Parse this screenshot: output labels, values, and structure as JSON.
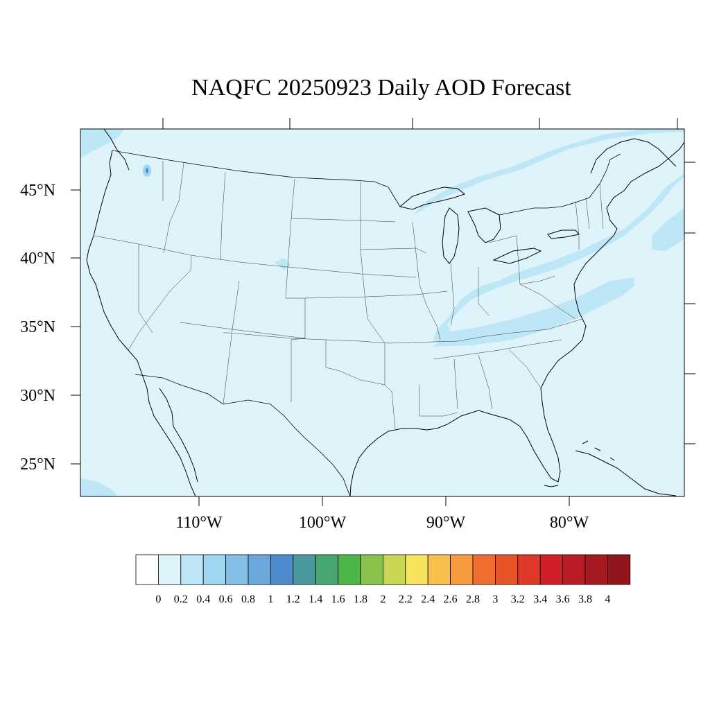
{
  "title": "NAQFC 20250923 Daily AOD Forecast",
  "map": {
    "background_color": "#dff3fb",
    "lat_labels": [
      "45°N",
      "40°N",
      "35°N",
      "30°N",
      "25°N"
    ],
    "lon_labels": [
      "110°W",
      "100°W",
      "90°W",
      "80°W"
    ]
  },
  "colorbar": {
    "levels": [
      "0",
      "0.2",
      "0.4",
      "0.6",
      "0.8",
      "1",
      "1.2",
      "1.4",
      "1.6",
      "1.8",
      "2",
      "2.2",
      "2.4",
      "2.6",
      "2.8",
      "3",
      "3.2",
      "3.4",
      "3.6",
      "3.8",
      "4"
    ],
    "colors": [
      "#ffffff",
      "#dff3fb",
      "#bde6f7",
      "#9fd7f3",
      "#85bfe6",
      "#6aa7db",
      "#4d8ccc",
      "#4a9a9d",
      "#48a672",
      "#4cb748",
      "#88c44d",
      "#c8d654",
      "#f8e45a",
      "#f8c04c",
      "#f69b3e",
      "#f06e2f",
      "#e85428",
      "#e03827",
      "#d21f27",
      "#b91c24",
      "#a51a21",
      "#92151b"
    ]
  }
}
